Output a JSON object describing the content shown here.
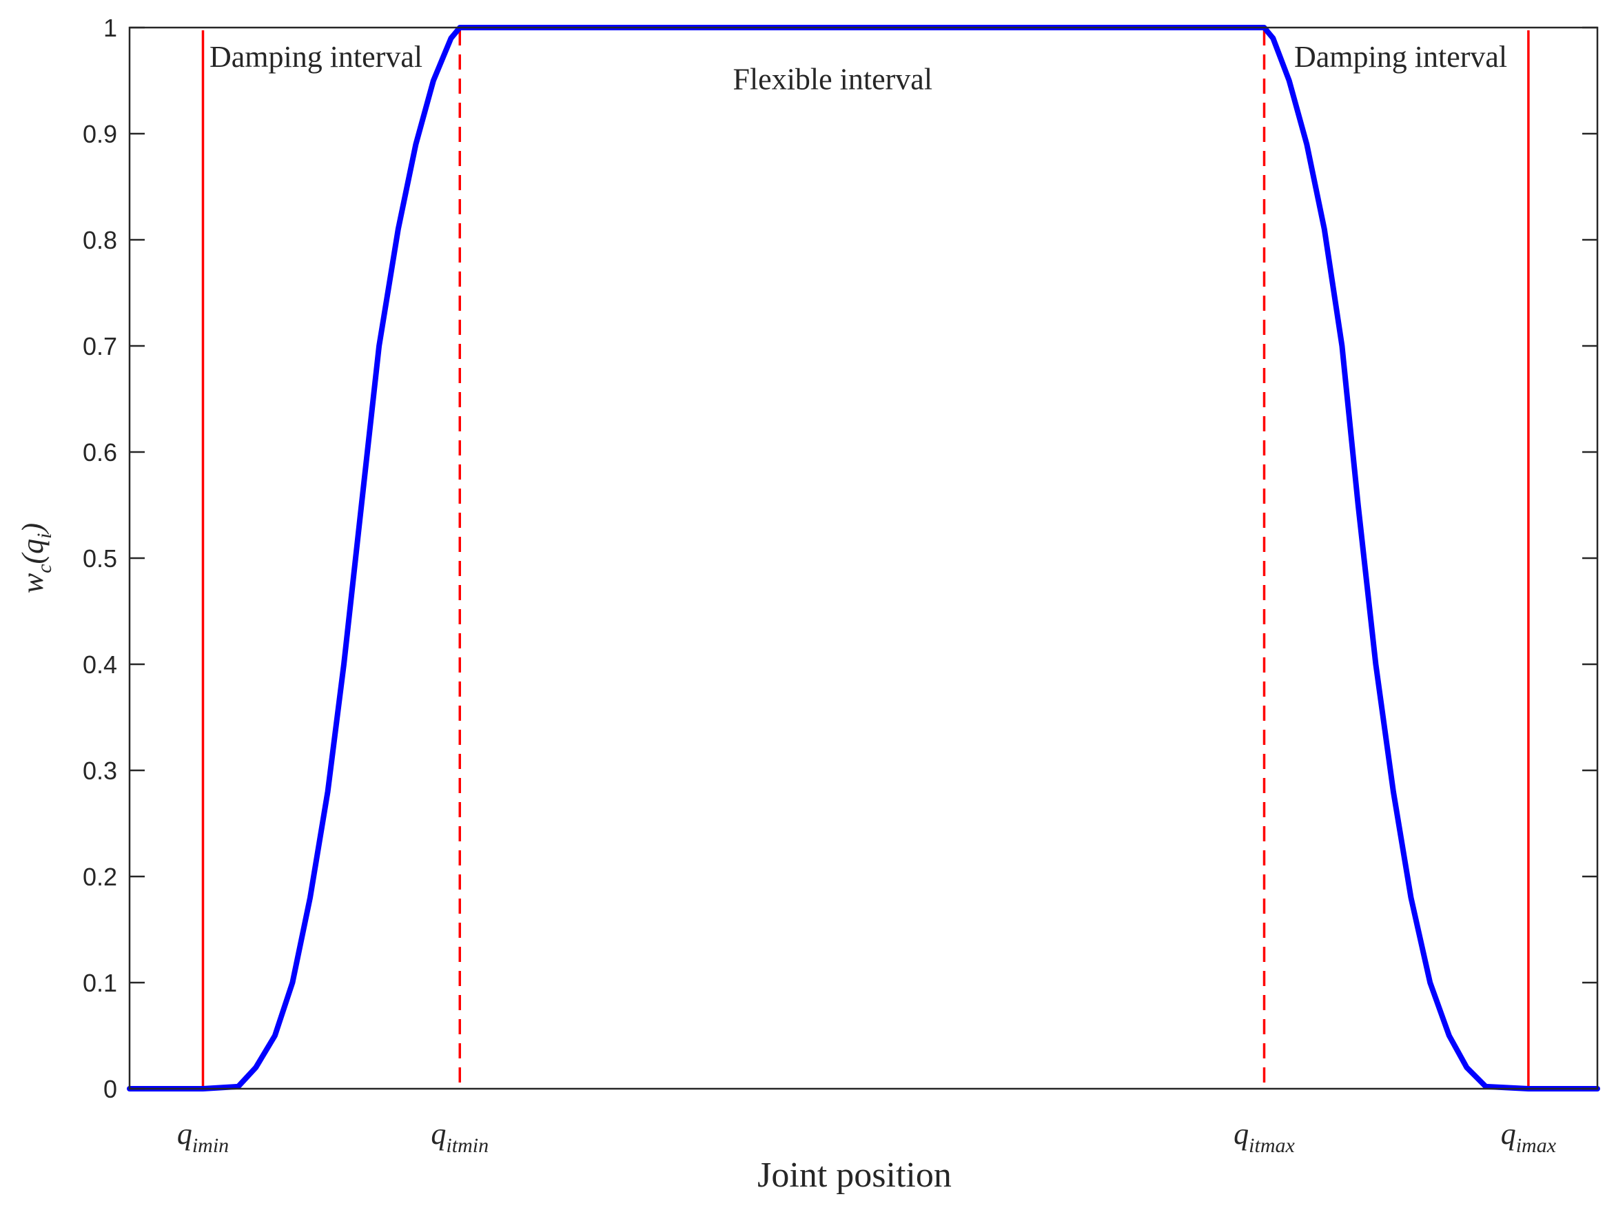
{
  "chart_data": {
    "type": "line",
    "xlabel": "Joint position",
    "ylabel": {
      "base": "w",
      "sub": "c",
      "paren_open": "(",
      "arg": "q",
      "arg_sub": "i",
      "paren_close": ")"
    },
    "ylim": [
      0,
      1
    ],
    "yticks": [
      "0",
      "0.1",
      "0.2",
      "0.3",
      "0.4",
      "0.5",
      "0.6",
      "0.7",
      "0.8",
      "0.9",
      "1"
    ],
    "xlim": [
      0,
      100
    ],
    "grid": false,
    "x_markers": [
      {
        "x": 5.0,
        "style": "solid",
        "color": "#ff0000",
        "label": {
          "base": "q",
          "sub": "imin"
        }
      },
      {
        "x": 22.5,
        "style": "dashed",
        "color": "#ff0000",
        "label": {
          "base": "q",
          "sub": "itmin"
        }
      },
      {
        "x": 77.3,
        "style": "dashed",
        "color": "#ff0000",
        "label": {
          "base": "q",
          "sub": "itmax"
        }
      },
      {
        "x": 95.3,
        "style": "solid",
        "color": "#ff0000",
        "label": {
          "base": "q",
          "sub": "imax"
        }
      }
    ],
    "annotations": [
      {
        "text": "Damping interval",
        "x": 12.7,
        "y": 0.972
      },
      {
        "text": "Flexible interval",
        "x": 47.9,
        "y": 0.951
      },
      {
        "text": "Damping interval",
        "x": 86.6,
        "y": 0.972
      }
    ],
    "series": [
      {
        "color": "#0000ff",
        "x": [
          0,
          5.0,
          7.4,
          8.6,
          9.9,
          11.1,
          12.3,
          13.5,
          14.6,
          15.8,
          17.0,
          18.3,
          19.5,
          20.7,
          21.9,
          22.5,
          50.0,
          77.3,
          77.9,
          79.0,
          80.2,
          81.4,
          82.6,
          83.7,
          84.9,
          86.1,
          87.3,
          88.6,
          89.9,
          91.1,
          92.4,
          95.3,
          100
        ],
        "y": [
          0,
          0,
          0.002,
          0.02,
          0.05,
          0.1,
          0.18,
          0.28,
          0.4,
          0.55,
          0.7,
          0.81,
          0.89,
          0.95,
          0.99,
          1,
          1,
          1,
          0.99,
          0.95,
          0.89,
          0.81,
          0.7,
          0.55,
          0.4,
          0.28,
          0.18,
          0.1,
          0.05,
          0.02,
          0.002,
          0,
          0
        ]
      }
    ]
  }
}
